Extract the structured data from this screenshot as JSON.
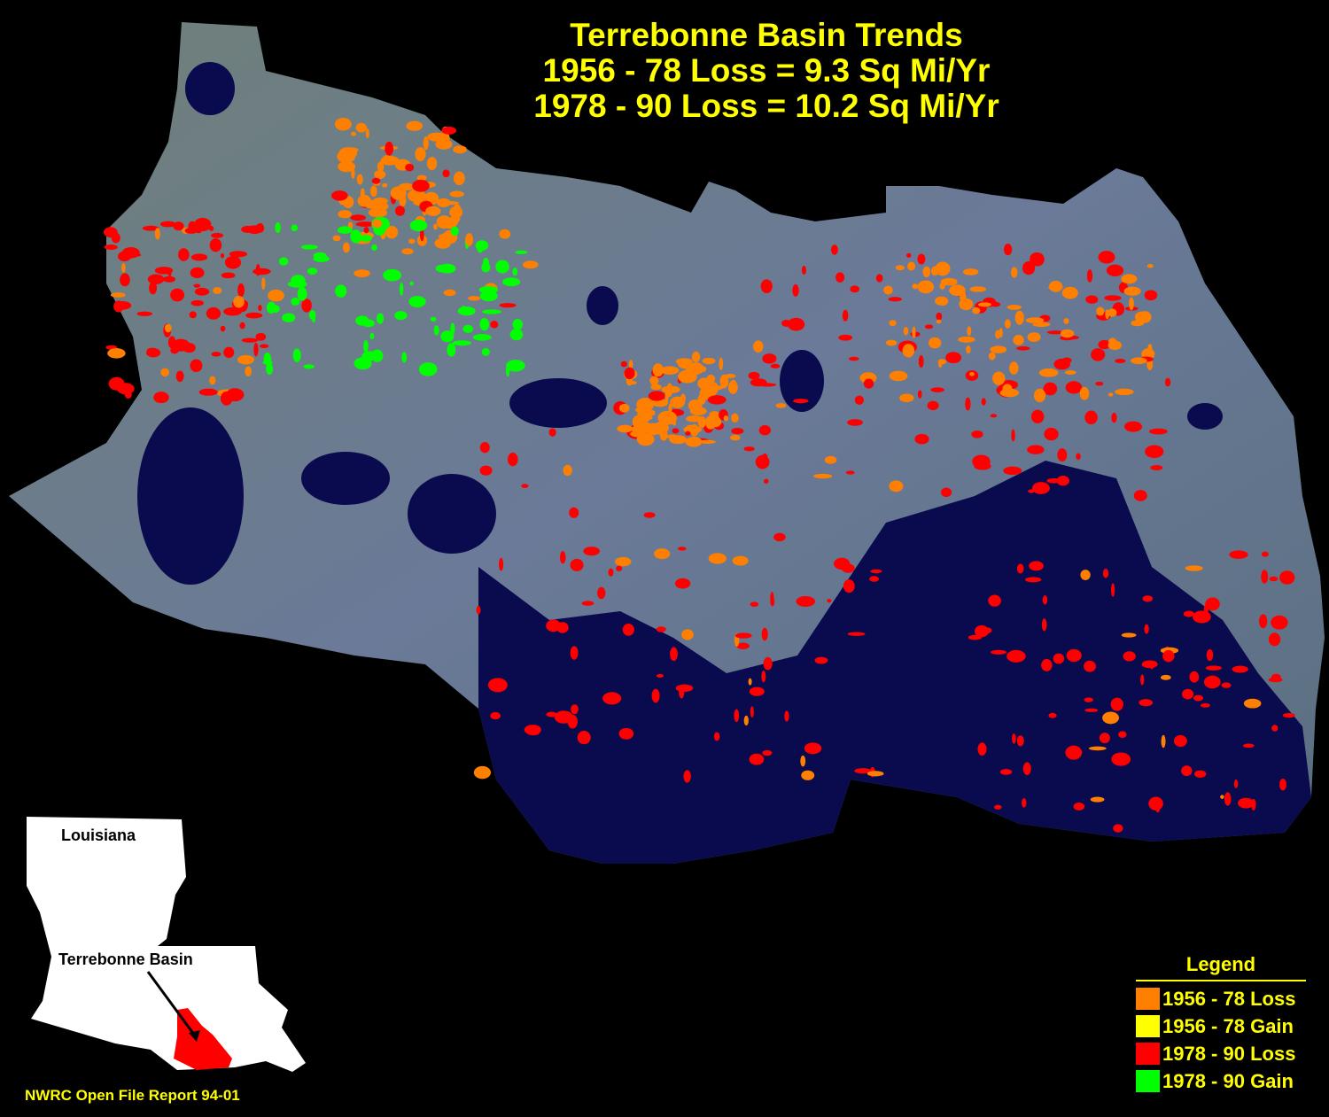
{
  "title": {
    "line1": "Terrebonne Basin Trends",
    "line2": "1956 - 78 Loss = 9.3 Sq Mi/Yr",
    "line3": "1978 - 90 Loss = 10.2 Sq Mi/Yr"
  },
  "legend": {
    "title": "Legend",
    "items": [
      {
        "label": "1956 - 78 Loss",
        "color": "#ff8000"
      },
      {
        "label": "1956 - 78 Gain",
        "color": "#ffff00"
      },
      {
        "label": "1978 - 90 Loss",
        "color": "#ff0000"
      },
      {
        "label": "1978 - 90 Gain",
        "color": "#00ff00"
      }
    ]
  },
  "inset": {
    "state_label": "Louisiana",
    "basin_label": "Terrebonne Basin",
    "basin_color": "#ff0000"
  },
  "credit": "NWRC Open File Report 94-01",
  "colors": {
    "water": "#0a0a4e",
    "land": "#5a6e7a",
    "text": "#ffff00"
  }
}
